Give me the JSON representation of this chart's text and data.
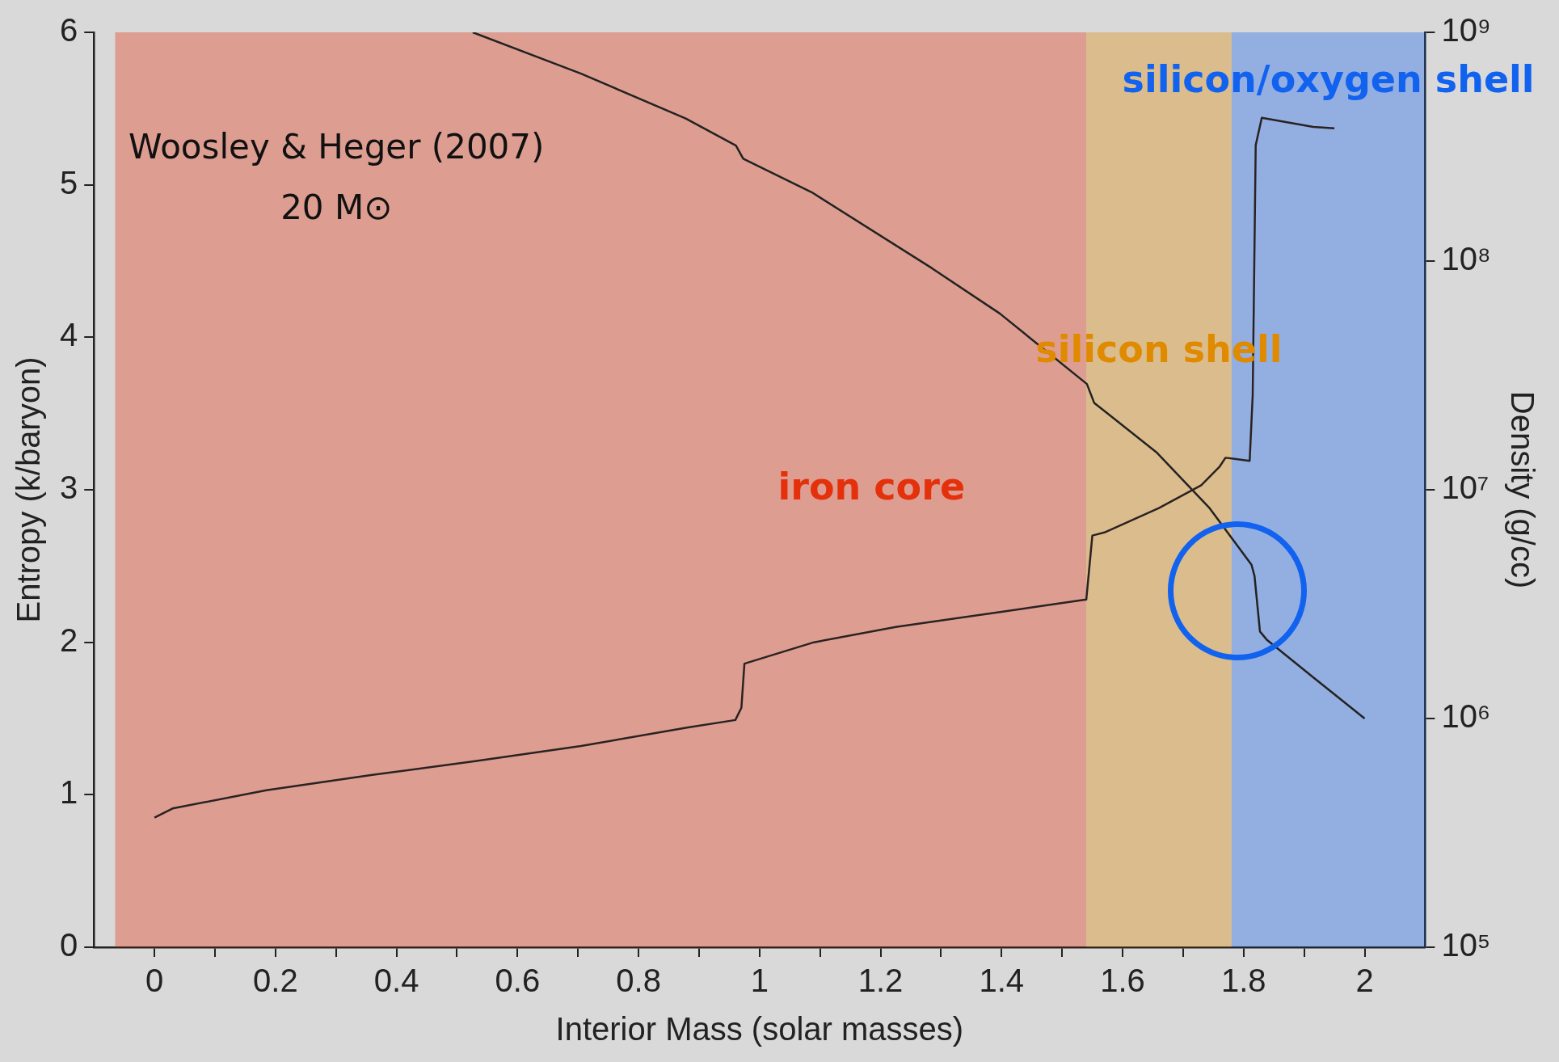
{
  "chart_data": {
    "type": "line",
    "xlabel": "Interior Mass (solar masses)",
    "ylabel": "Entropy (k/baryon)",
    "y2label": "Density (g/cc)",
    "xlim": [
      -0.1,
      2.1
    ],
    "xticks": [
      0,
      {
        "value": 0.1,
        "label": null
      },
      0.2,
      {
        "value": 0.3,
        "label": null
      },
      0.4,
      {
        "value": 0.5,
        "label": null
      },
      0.6,
      {
        "value": 0.7,
        "label": null
      },
      0.8,
      {
        "value": 0.9,
        "label": null
      },
      1,
      {
        "value": 1.1,
        "label": null
      },
      1.2,
      {
        "value": 1.3,
        "label": null
      },
      1.4,
      {
        "value": 1.5,
        "label": null
      },
      1.6,
      {
        "value": 1.7,
        "label": null
      },
      1.8,
      {
        "value": 1.9,
        "label": null
      },
      2
    ],
    "ylim": [
      0,
      6
    ],
    "yticks": [
      0,
      1,
      2,
      3,
      4,
      5,
      6
    ],
    "y2lim": [
      100000,
      1000000000
    ],
    "y2ticks": [
      {
        "value": 100000,
        "label": "10⁵"
      },
      {
        "value": 1000000,
        "label": "10⁶"
      },
      {
        "value": 10000000,
        "label": "10⁷"
      },
      {
        "value": 100000000,
        "label": "10⁸"
      },
      {
        "value": 1000000000,
        "label": "10⁹"
      }
    ],
    "log": "y2",
    "grid": false,
    "legend": false,
    "marker": "none",
    "line_style": "solid",
    "series": [
      {
        "color": "#2a2222",
        "x": [
          0,
          0.03,
          0.185,
          0.36,
          0.53,
          0.705,
          0.88,
          0.96,
          0.97,
          0.975,
          1.09,
          1.225,
          1.4,
          1.54,
          1.55,
          1.57,
          1.66,
          1.73,
          1.76,
          1.77,
          1.81,
          1.815,
          1.82,
          1.83,
          1.915,
          1.95
        ],
        "values": [
          0.85,
          0.91,
          1.03,
          1.13,
          1.22,
          1.32,
          1.44,
          1.49,
          1.57,
          1.86,
          2.0,
          2.1,
          2.2,
          2.28,
          2.7,
          2.72,
          2.88,
          3.03,
          3.15,
          3.21,
          3.19,
          3.62,
          5.26,
          5.44,
          5.38,
          5.37
        ]
      },
      {
        "color": "#222222",
        "axis": "y2",
        "x": [
          0.526,
          0.705,
          0.878,
          0.961,
          0.973,
          1.086,
          1.285,
          1.397,
          1.541,
          1.553,
          1.657,
          1.744,
          1.813,
          1.818,
          1.827,
          1.839,
          1.917,
          2.0
        ],
        "values": [
          1000000000,
          660000000,
          420000000,
          320000000,
          280000000,
          200000000,
          93000000,
          59000000,
          29000000,
          24000000,
          14500000,
          8300000,
          4700000,
          4200000,
          2400000,
          2200000,
          1500000,
          1000000
        ]
      }
    ],
    "bands": [
      {
        "axis": "x",
        "from": -0.065,
        "to": 1.54,
        "label": "iron core",
        "color": "#e5300c"
      },
      {
        "axis": "x",
        "from": 1.54,
        "to": 1.78,
        "label": "silicon shell",
        "color": "#e08a00"
      },
      {
        "axis": "x",
        "from": 1.78,
        "to": 2.1,
        "label": "silicon/oxygen shell",
        "color": "#1262f0"
      }
    ],
    "annotations": [
      "Woosley & Heger (2007)",
      "20 M⊙"
    ]
  }
}
